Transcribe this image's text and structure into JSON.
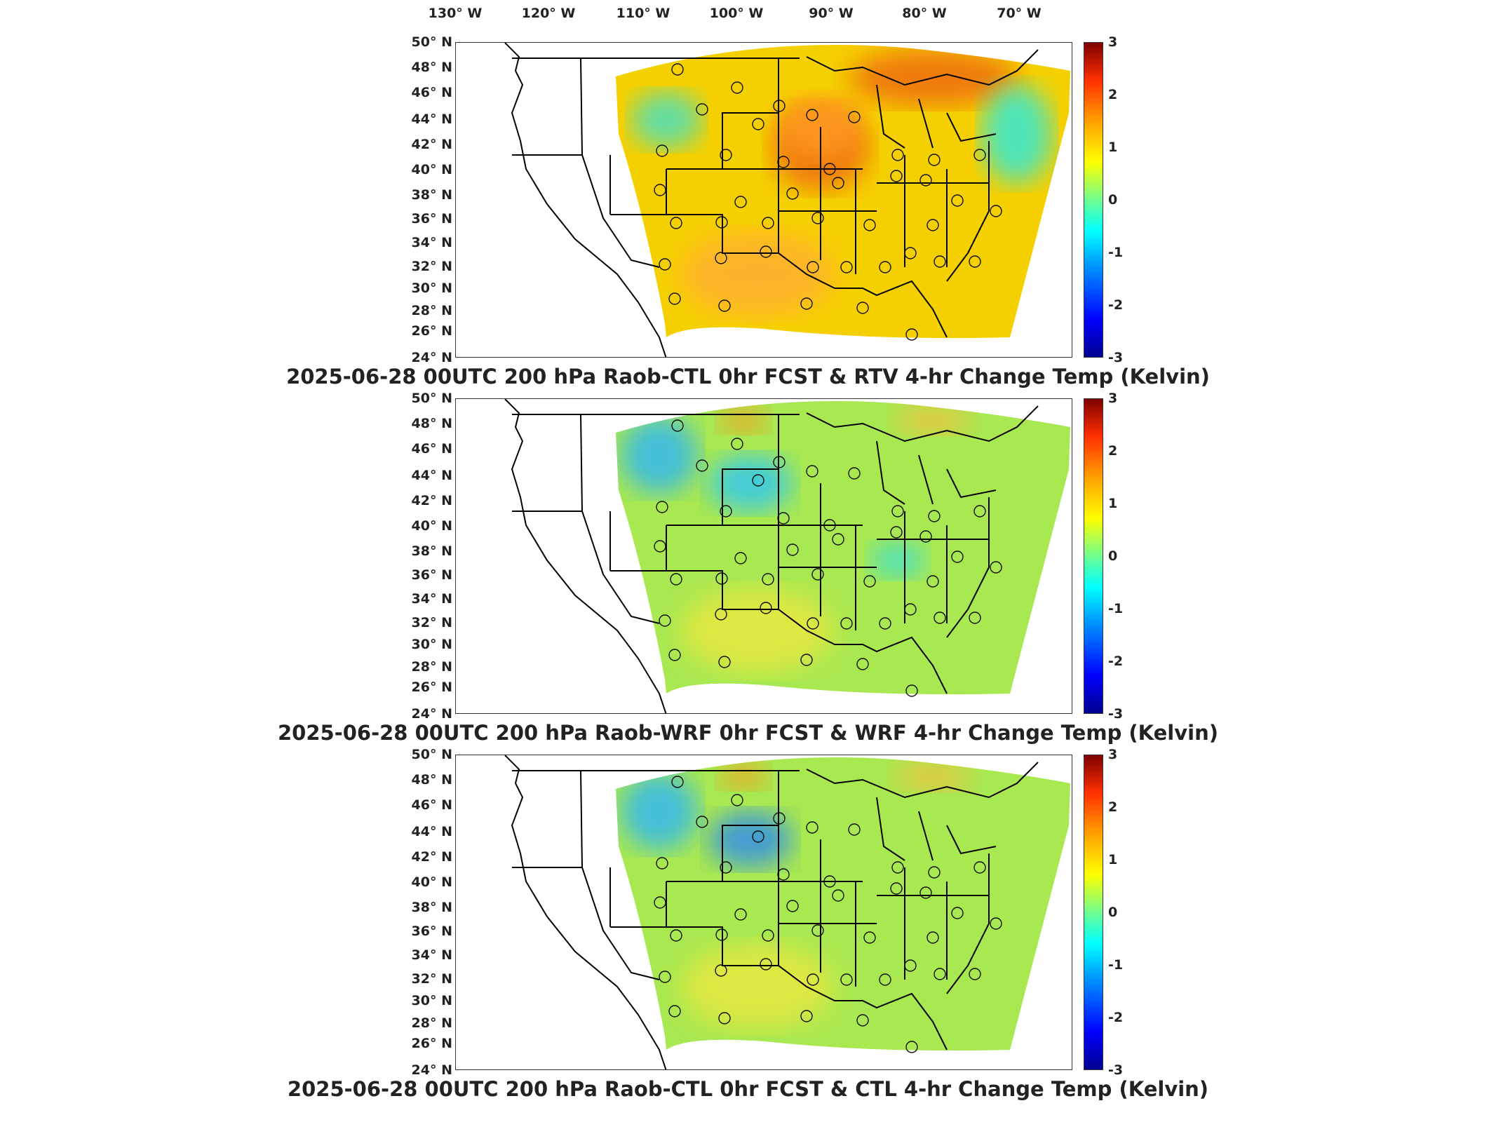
{
  "longitude_labels": [
    "130° W",
    "120° W",
    "110° W",
    "100° W",
    "90° W",
    "80° W",
    "70° W"
  ],
  "latitude_labels": [
    "50° N",
    "48° N",
    "46° N",
    "44° N",
    "42° N",
    "40° N",
    "38° N",
    "36° N",
    "34° N",
    "32° N",
    "30° N",
    "28° N",
    "26° N",
    "24° N"
  ],
  "colorbar_labels": [
    "3",
    "2",
    "1",
    "0",
    "-1",
    "-2",
    "-3"
  ],
  "colorbar_range": [
    -3,
    3
  ],
  "colormap": [
    "#00008f",
    "#0000ff",
    "#00ffff",
    "#a0ff60",
    "#ffff00",
    "#ff3000",
    "#800000"
  ],
  "panels": [
    {
      "title": "2025-06-28 00UTC 200 hPa Raob-CTL 0hr FCST & RTV 4-hr Change Temp (Kelvin)",
      "base_color": "#f5d000",
      "patches": [
        {
          "color": "#ee6a10",
          "region": "great-lakes-north"
        },
        {
          "color": "#ff9a20",
          "region": "upper-midwest"
        },
        {
          "color": "#48e0c0",
          "region": "northern-rockies"
        },
        {
          "color": "#ffb030",
          "region": "southern-plains"
        },
        {
          "color": "#30e8d8",
          "region": "new-england"
        }
      ]
    },
    {
      "title": "2025-06-28 00UTC 200 hPa Raob-WRF 0hr FCST & WRF 4-hr Change Temp (Kelvin)",
      "base_color": "#a8e850",
      "patches": [
        {
          "color": "#30b8f0",
          "region": "montana"
        },
        {
          "color": "#30c8f0",
          "region": "dakotas-nebraska"
        },
        {
          "color": "#f5a020",
          "region": "north-dakota-north"
        },
        {
          "color": "#f0c040",
          "region": "lake-superior-north"
        },
        {
          "color": "#40e0d0",
          "region": "ohio-valley"
        },
        {
          "color": "#e8e840",
          "region": "southern-plains"
        }
      ]
    },
    {
      "title": "2025-06-28 00UTC 200 hPa Raob-CTL 0hr FCST & CTL 4-hr Change Temp (Kelvin)",
      "base_color": "#a8e850",
      "patches": [
        {
          "color": "#30b8f0",
          "region": "montana"
        },
        {
          "color": "#3090e8",
          "region": "dakotas-nebraska"
        },
        {
          "color": "#f5a020",
          "region": "north-dakota-north"
        },
        {
          "color": "#f0c040",
          "region": "lake-superior-north"
        },
        {
          "color": "#e8e840",
          "region": "southern-plains"
        }
      ]
    }
  ]
}
